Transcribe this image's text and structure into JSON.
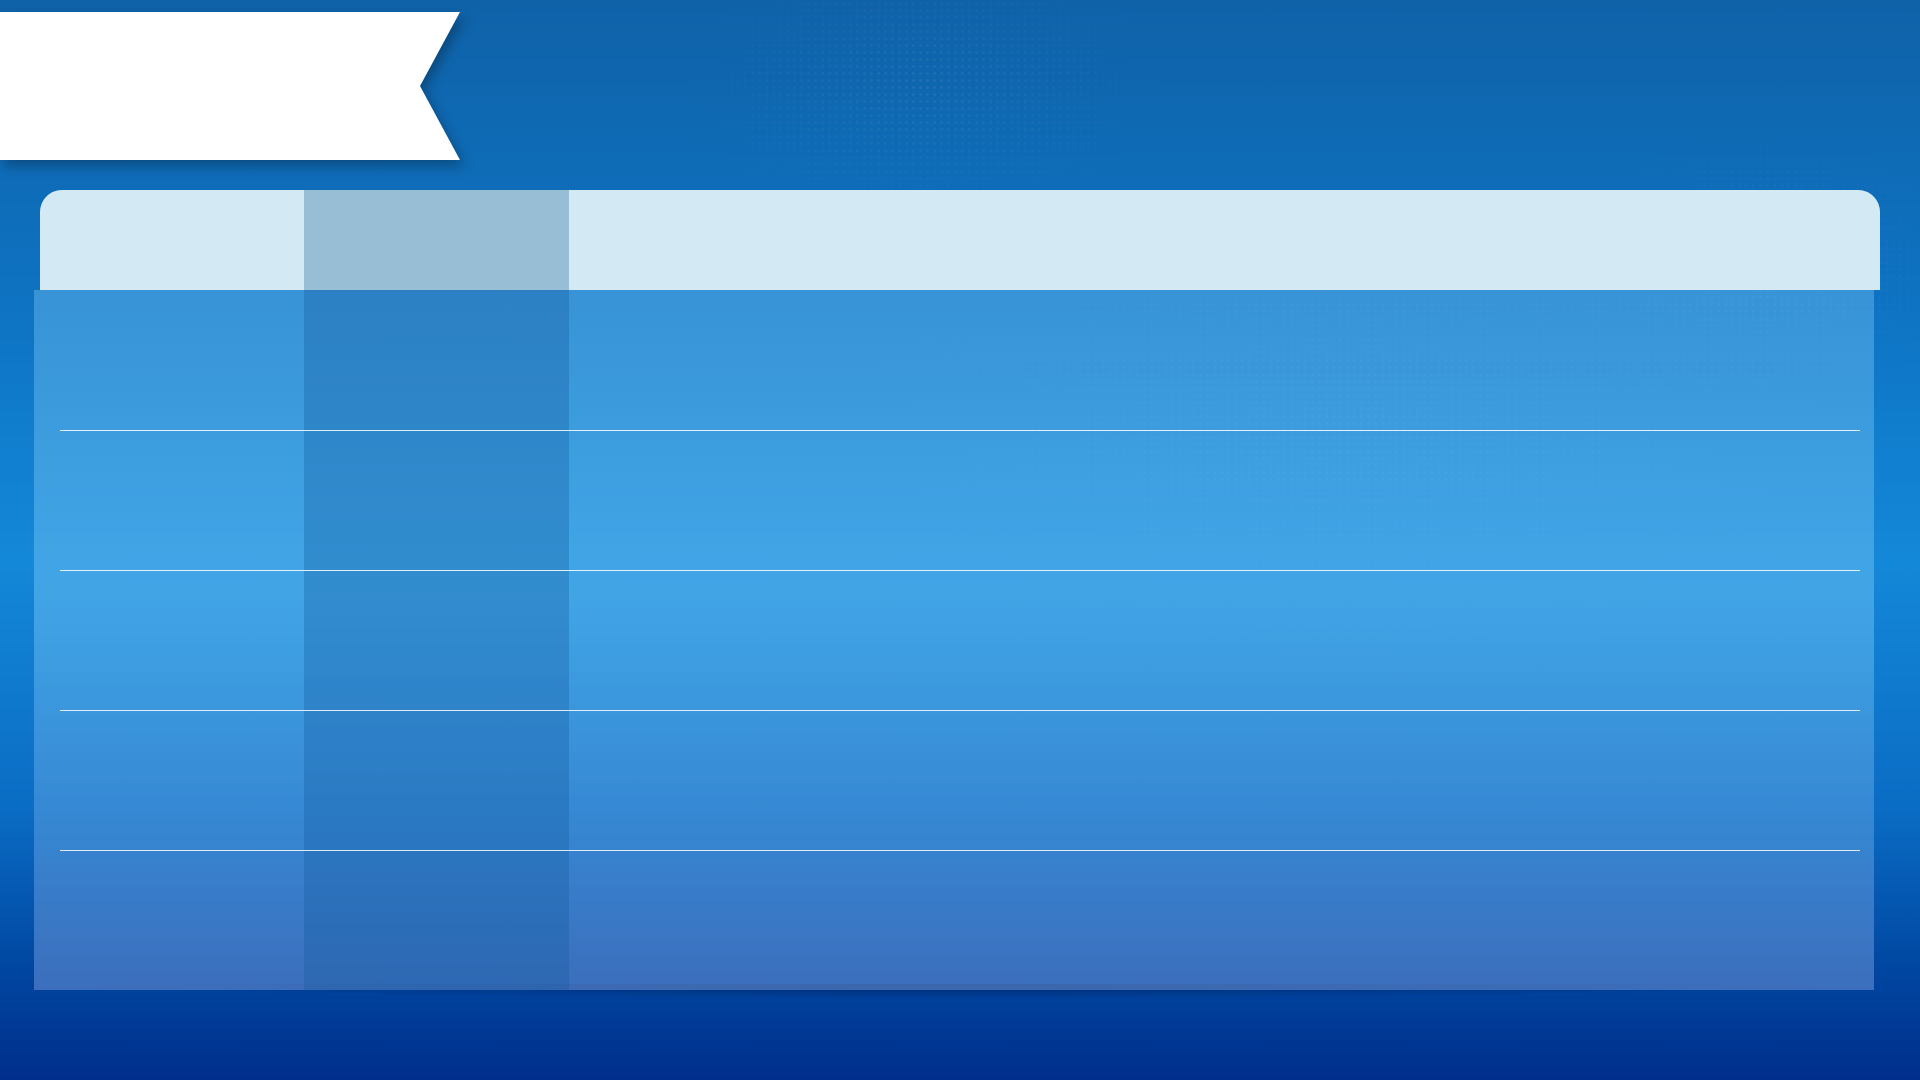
{
  "title": "",
  "table": {
    "headers": [
      "",
      "",
      ""
    ],
    "rows": [
      [
        "",
        "",
        ""
      ],
      [
        "",
        "",
        ""
      ],
      [
        "",
        "",
        ""
      ],
      [
        "",
        "",
        ""
      ],
      [
        "",
        "",
        ""
      ]
    ]
  },
  "colors": {
    "banner": "#ffffff",
    "header": "#d3e9f3",
    "header_accent": "#98bed6",
    "background_top": "#0f62a8",
    "background_bottom": "#002e8c"
  }
}
